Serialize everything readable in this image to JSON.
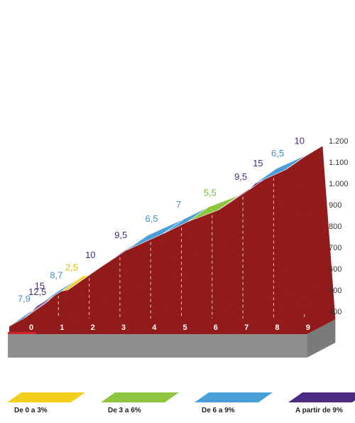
{
  "chart_data": {
    "type": "area",
    "title": "",
    "xlabel": "",
    "ylabel": "",
    "x_ticks": [
      "0",
      "1",
      "2",
      "3",
      "4",
      "5",
      "6",
      "7",
      "8",
      "9"
    ],
    "y_ticks": [
      "400",
      "500",
      "600",
      "700",
      "800",
      "900",
      "1.000",
      "1.100",
      "1.200"
    ],
    "ylim": [
      400,
      1200
    ],
    "xlim": [
      0,
      9.5
    ],
    "segments": [
      {
        "label": "7,9",
        "gradient": 7.9,
        "category": "De 6 a 9%",
        "x_start": 0.0,
        "x_end": 0.5,
        "elevation_start": 400,
        "elevation_end": 440
      },
      {
        "label": "12,5",
        "gradient": 12.5,
        "category": "A partir de 9%",
        "x_start": 0.5,
        "x_end": 0.7,
        "elevation_start": 440,
        "elevation_end": 465
      },
      {
        "label": "15",
        "gradient": 15,
        "category": "A partir de 9%",
        "x_start": 0.7,
        "x_end": 0.9,
        "elevation_start": 465,
        "elevation_end": 495
      },
      {
        "label": "8,7",
        "gradient": 8.7,
        "category": "De 6 a 9%",
        "x_start": 0.9,
        "x_end": 1.7,
        "elevation_start": 495,
        "elevation_end": 565
      },
      {
        "label": "2,5",
        "gradient": 2.5,
        "category": "De 0 a 3%",
        "x_start": 1.7,
        "x_end": 1.9,
        "elevation_start": 565,
        "elevation_end": 570
      },
      {
        "label": "10",
        "gradient": 10,
        "category": "A partir de 9%",
        "x_start": 1.9,
        "x_end": 3.0,
        "elevation_start": 570,
        "elevation_end": 680
      },
      {
        "label": "9,5",
        "gradient": 9.5,
        "category": "A partir de 9%",
        "x_start": 3.0,
        "x_end": 3.8,
        "elevation_start": 680,
        "elevation_end": 756
      },
      {
        "label": "6,5",
        "gradient": 6.5,
        "category": "De 6 a 9%",
        "x_start": 3.8,
        "x_end": 5.0,
        "elevation_start": 756,
        "elevation_end": 834
      },
      {
        "label": "7",
        "gradient": 7,
        "category": "De 6 a 9%",
        "x_start": 5.0,
        "x_end": 5.8,
        "elevation_start": 834,
        "elevation_end": 890
      },
      {
        "label": "5,5",
        "gradient": 5.5,
        "category": "De 3 a 6%",
        "x_start": 5.8,
        "x_end": 6.8,
        "elevation_start": 890,
        "elevation_end": 945
      },
      {
        "label": "9,5",
        "gradient": 9.5,
        "category": "A partir de 9%",
        "x_start": 6.8,
        "x_end": 7.8,
        "elevation_start": 945,
        "elevation_end": 1040
      },
      {
        "label": "15",
        "gradient": 15,
        "category": "A partir de 9%",
        "x_start": 7.8,
        "x_end": 8.0,
        "elevation_start": 1040,
        "elevation_end": 1070
      },
      {
        "label": "6,5",
        "gradient": 6.5,
        "category": "De 6 a 9%",
        "x_start": 8.0,
        "x_end": 9.0,
        "elevation_start": 1070,
        "elevation_end": 1135
      },
      {
        "label": "10",
        "gradient": 10,
        "category": "A partir de 9%",
        "x_start": 9.0,
        "x_end": 9.5,
        "elevation_start": 1135,
        "elevation_end": 1185
      }
    ],
    "legend": [
      {
        "name": "De 0 a 3%",
        "color": "#f2cf1d"
      },
      {
        "name": "De 3 a 6%",
        "color": "#8cc63e"
      },
      {
        "name": "De 6 a 9%",
        "color": "#4a9fd8"
      },
      {
        "name": "A partir de 9%",
        "color": "#4b2a82"
      }
    ],
    "legend_placement": "bottom",
    "grid": false
  },
  "colors": {
    "profile_fill": "#8a1212",
    "base_top": "#bdbdbd",
    "base_front": "#8f8f8f",
    "base_left": "#d2232a",
    "label_colors": {
      "De 0 a 3%": "#e6b800",
      "De 3 a 6%": "#7ab32e",
      "De 6 a 9%": "#3d8fcc",
      "A partir de 9%": "#4b2a82"
    }
  }
}
